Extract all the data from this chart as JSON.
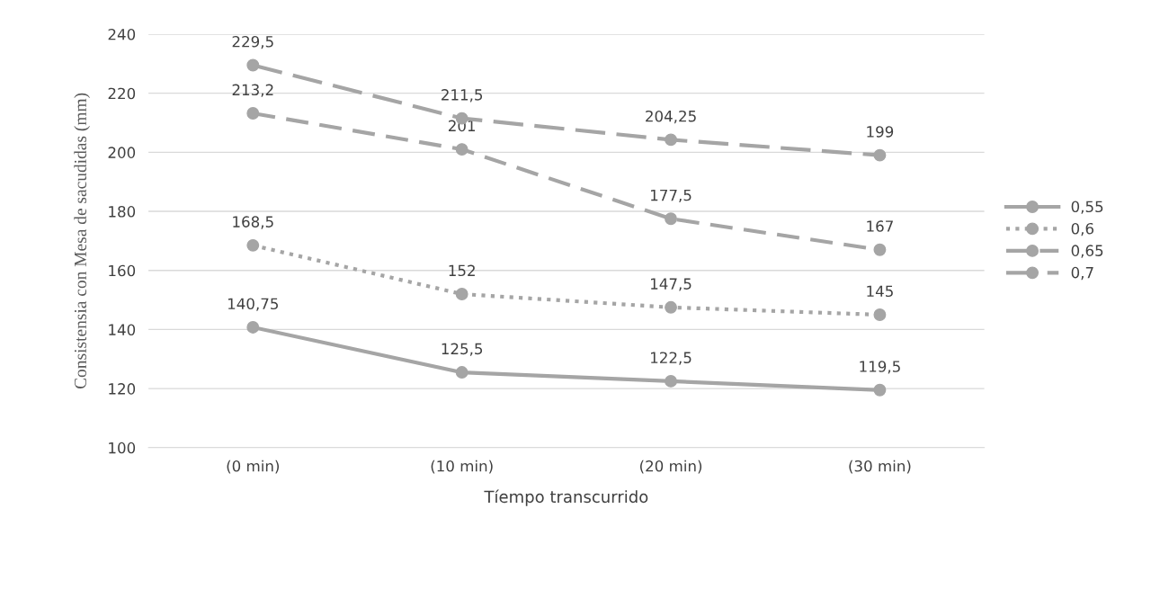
{
  "chart_data": {
    "type": "line",
    "xlabel": "Tíempo transcurrido",
    "ylabel": "Consistensia con Mesa de sacudidas (mm)",
    "categories": [
      "(0 min)",
      "(10 min)",
      "(20 min)",
      "(30 min)"
    ],
    "series": [
      {
        "name": "0,55",
        "color": "#a5a5a5",
        "line_style": "solid",
        "values": [
          140.75,
          125.5,
          122.5,
          119.5
        ],
        "value_labels": [
          "140,75",
          "125,5",
          "122,5",
          "119,5"
        ]
      },
      {
        "name": "0,6",
        "color": "#a5a5a5",
        "line_style": "dotted",
        "values": [
          168.5,
          152,
          147.5,
          145
        ],
        "value_labels": [
          "168,5",
          "152",
          "147,5",
          "145"
        ]
      },
      {
        "name": "0,65",
        "color": "#a5a5a5",
        "line_style": "dashed",
        "values": [
          213.2,
          201,
          177.5,
          167
        ],
        "value_labels": [
          "213,2",
          "201",
          "177,5",
          "167"
        ]
      },
      {
        "name": "0,7",
        "color": "#a5a5a5",
        "line_style": "dashed",
        "values": [
          229.5,
          211.5,
          204.25,
          199
        ],
        "value_labels": [
          "229,5",
          "211,5",
          "204,25",
          "199"
        ]
      }
    ],
    "ylim": [
      100,
      240
    ],
    "yticks": [
      100,
      120,
      140,
      160,
      180,
      200,
      220,
      240
    ],
    "grid": "y",
    "legend": "right",
    "marker": "circle"
  }
}
